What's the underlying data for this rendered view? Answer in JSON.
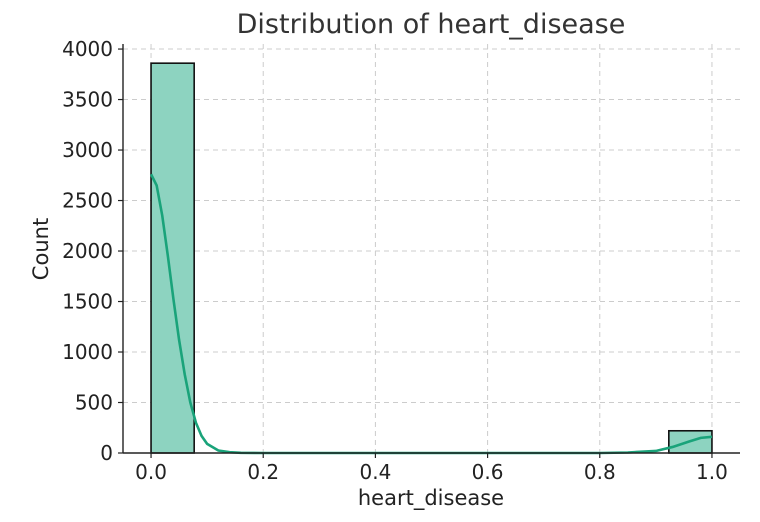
{
  "chart_data": {
    "type": "bar",
    "title": "Distribution of heart_disease",
    "xlabel": "heart_disease",
    "ylabel": "Count",
    "xlim": [
      -0.05,
      1.05
    ],
    "ylim": [
      0,
      4050
    ],
    "xticks": [
      0.0,
      0.2,
      0.4,
      0.6,
      0.8,
      1.0
    ],
    "xtick_labels": [
      "0.0",
      "0.2",
      "0.4",
      "0.6",
      "0.8",
      "1.0"
    ],
    "yticks": [
      0,
      500,
      1000,
      1500,
      2000,
      2500,
      3000,
      3500,
      4000
    ],
    "ytick_labels": [
      "0",
      "500",
      "1000",
      "1500",
      "2000",
      "2500",
      "3000",
      "3500",
      "4000"
    ],
    "grid": true,
    "bars": [
      {
        "x0": 0.0,
        "x1": 0.0769,
        "count": 3860
      },
      {
        "x0": 0.9231,
        "x1": 1.0,
        "count": 220
      }
    ],
    "kde": {
      "x": [
        0.0,
        0.01,
        0.02,
        0.03,
        0.04,
        0.05,
        0.06,
        0.07,
        0.08,
        0.09,
        0.1,
        0.12,
        0.14,
        0.16,
        0.2,
        0.3,
        0.5,
        0.7,
        0.8,
        0.85,
        0.9,
        0.93,
        0.96,
        0.98,
        1.0
      ],
      "y": [
        2760,
        2650,
        2350,
        1950,
        1520,
        1120,
        780,
        500,
        300,
        170,
        90,
        25,
        8,
        2,
        0,
        0,
        0,
        0,
        0,
        5,
        20,
        60,
        115,
        150,
        160
      ]
    },
    "colors": {
      "bar_fill": "#8dd3c0",
      "kde_line": "#1aa37a"
    }
  }
}
